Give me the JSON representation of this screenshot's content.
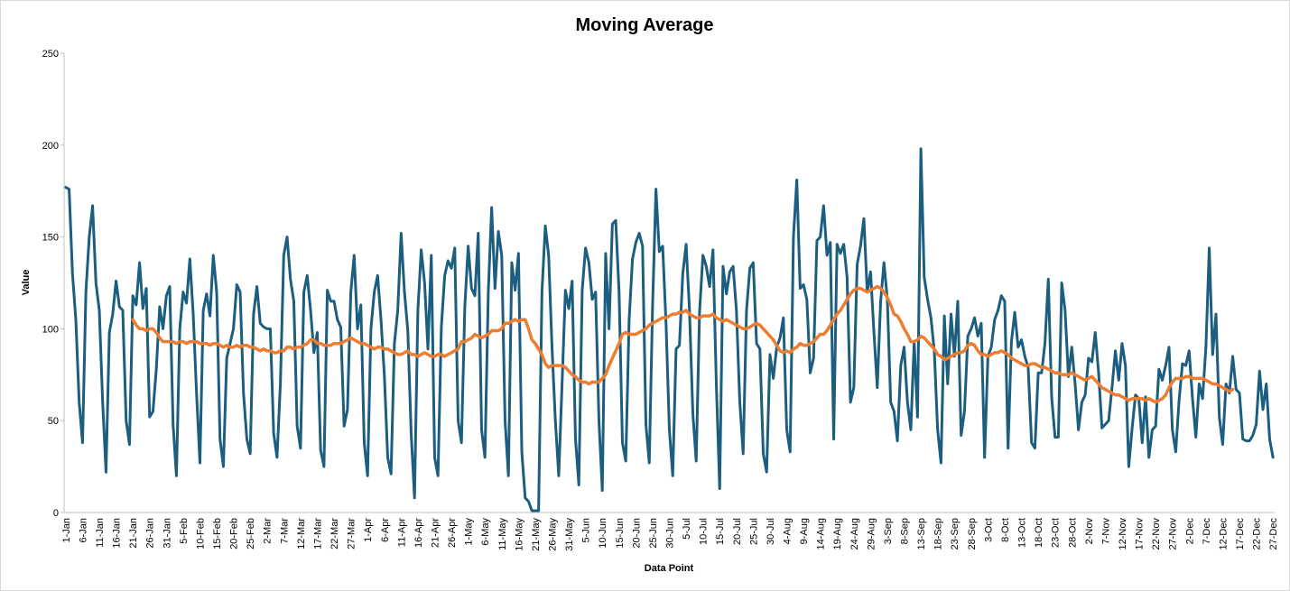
{
  "chart_data": {
    "type": "line",
    "title": "Moving Average",
    "xlabel": "Data Point",
    "ylabel": "Value",
    "ylim": [
      0,
      250
    ],
    "yticks": [
      0,
      50,
      100,
      150,
      200,
      250
    ],
    "grid": false,
    "legend": "none",
    "date_ticks": [
      "1-Jan",
      "6-Jan",
      "11-Jan",
      "16-Jan",
      "21-Jan",
      "26-Jan",
      "31-Jan",
      "5-Feb",
      "10-Feb",
      "15-Feb",
      "20-Feb",
      "25-Feb",
      "2-Mar",
      "7-Mar",
      "12-Mar",
      "17-Mar",
      "22-Mar",
      "27-Mar",
      "1-Apr",
      "6-Apr",
      "11-Apr",
      "16-Apr",
      "21-Apr",
      "26-Apr",
      "1-May",
      "6-May",
      "11-May",
      "16-May",
      "21-May",
      "26-May",
      "31-May",
      "5-Jun",
      "10-Jun",
      "15-Jun",
      "20-Jun",
      "25-Jun",
      "30-Jun",
      "5-Jul",
      "10-Jul",
      "15-Jul",
      "20-Jul",
      "25-Jul",
      "30-Jul",
      "4-Aug",
      "9-Aug",
      "14-Aug",
      "19-Aug",
      "24-Aug",
      "29-Aug",
      "3-Sep",
      "8-Sep",
      "13-Sep",
      "18-Sep",
      "23-Sep",
      "28-Sep",
      "3-Oct",
      "8-Oct",
      "13-Oct",
      "18-Oct",
      "23-Oct",
      "28-Oct",
      "2-Nov",
      "7-Nov",
      "12-Nov",
      "17-Nov",
      "22-Nov",
      "27-Nov",
      "2-Dec",
      "7-Dec",
      "12-Dec",
      "17-Dec",
      "22-Dec",
      "27-Dec"
    ],
    "series": [
      {
        "color": "#1b5e80",
        "values": [
          177,
          176,
          130,
          105,
          60,
          38,
          120,
          150,
          167,
          125,
          110,
          60,
          22,
          98,
          108,
          126,
          112,
          110,
          50,
          37,
          118,
          113,
          136,
          111,
          122,
          52,
          55,
          78,
          112,
          100,
          118,
          123,
          48,
          20,
          100,
          120,
          114,
          138,
          108,
          65,
          27,
          110,
          119,
          107,
          140,
          120,
          40,
          25,
          84,
          92,
          100,
          124,
          120,
          65,
          40,
          32,
          108,
          123,
          103,
          101,
          100,
          100,
          43,
          30,
          70,
          140,
          150,
          127,
          115,
          47,
          35,
          120,
          129,
          110,
          87,
          98,
          34,
          25,
          121,
          115,
          115,
          105,
          101,
          47,
          56,
          120,
          140,
          100,
          113,
          38,
          20,
          100,
          120,
          129,
          105,
          75,
          30,
          21,
          92,
          110,
          152,
          120,
          99,
          43,
          8,
          110,
          143,
          125,
          89,
          140,
          30,
          20,
          101,
          129,
          137,
          133,
          144,
          50,
          38,
          112,
          145,
          122,
          118,
          152,
          45,
          30,
          120,
          166,
          122,
          153,
          140,
          50,
          20,
          136,
          121,
          141,
          33,
          8,
          6,
          1,
          1,
          1,
          120,
          156,
          140,
          90,
          50,
          20,
          70,
          121,
          111,
          126,
          40,
          15,
          121,
          144,
          136,
          116,
          120,
          50,
          12,
          141,
          100,
          157,
          159,
          120,
          38,
          28,
          105,
          138,
          147,
          152,
          145,
          48,
          27,
          113,
          176,
          142,
          145,
          103,
          45,
          20,
          89,
          91,
          130,
          146,
          110,
          54,
          28,
          109,
          140,
          134,
          123,
          143,
          70,
          13,
          134,
          119,
          131,
          134,
          110,
          60,
          32,
          110,
          133,
          136,
          92,
          89,
          32,
          22,
          86,
          73,
          90,
          95,
          106,
          45,
          33,
          150,
          181,
          122,
          124,
          116,
          76,
          84,
          148,
          150,
          167,
          140,
          147,
          40,
          146,
          141,
          146,
          128,
          60,
          68,
          135,
          145,
          160,
          120,
          131,
          98,
          68,
          115,
          136,
          116,
          60,
          55,
          39,
          80,
          90,
          60,
          45,
          93,
          52,
          198,
          128,
          116,
          106,
          88,
          45,
          27,
          107,
          70,
          108,
          85,
          115,
          42,
          55,
          96,
          100,
          106,
          96,
          103,
          30,
          85,
          90,
          105,
          110,
          118,
          115,
          35,
          93,
          109,
          90,
          94,
          85,
          79,
          38,
          35,
          76,
          76,
          92,
          127,
          63,
          41,
          41,
          125,
          110,
          74,
          90,
          70,
          45,
          60,
          64,
          84,
          82,
          98,
          76,
          46,
          48,
          50,
          68,
          88,
          72,
          92,
          80,
          25,
          46,
          64,
          62,
          38,
          63,
          30,
          45,
          47,
          78,
          72,
          80,
          90,
          45,
          33,
          61,
          81,
          80,
          88,
          62,
          41,
          70,
          62,
          90,
          144,
          86,
          108,
          52,
          37,
          70,
          65,
          85,
          67,
          65,
          40,
          39,
          39,
          42,
          48,
          77,
          56,
          70,
          40,
          30
        ]
      },
      {
        "color": "#ed7d31",
        "values": [
          null,
          null,
          null,
          null,
          null,
          null,
          null,
          null,
          null,
          null,
          null,
          null,
          null,
          null,
          null,
          null,
          null,
          null,
          null,
          null,
          105,
          102,
          100,
          100,
          99,
          100,
          100,
          98,
          95,
          93,
          93,
          93,
          93,
          92,
          93,
          93,
          92,
          93,
          93,
          93,
          92,
          92,
          92,
          91,
          92,
          92,
          91,
          90,
          91,
          90,
          90,
          91,
          90,
          91,
          91,
          90,
          90,
          89,
          88,
          89,
          88,
          88,
          87,
          87,
          88,
          88,
          90,
          90,
          89,
          90,
          90,
          91,
          92,
          94,
          94,
          92,
          92,
          91,
          91,
          91,
          92,
          92,
          92,
          93,
          94,
          95,
          94,
          93,
          92,
          92,
          91,
          90,
          89,
          90,
          90,
          89,
          89,
          88,
          87,
          86,
          86,
          87,
          88,
          86,
          86,
          85,
          86,
          87,
          86,
          85,
          85,
          86,
          86,
          85,
          86,
          87,
          88,
          89,
          93,
          93,
          94,
          95,
          97,
          96,
          95,
          96,
          97,
          99,
          99,
          99,
          100,
          103,
          103,
          104,
          105,
          104,
          105,
          105,
          100,
          94,
          92,
          89,
          86,
          81,
          79,
          80,
          80,
          80,
          80,
          79,
          77,
          75,
          74,
          72,
          71,
          71,
          70,
          71,
          71,
          71,
          73,
          75,
          80,
          84,
          88,
          92,
          97,
          98,
          97,
          97,
          97,
          98,
          99,
          100,
          102,
          103,
          104,
          105,
          106,
          106,
          107,
          108,
          108,
          109,
          109,
          110,
          108,
          107,
          106,
          106,
          107,
          107,
          107,
          108,
          106,
          105,
          104,
          105,
          104,
          103,
          102,
          101,
          100,
          100,
          101,
          102,
          103,
          102,
          100,
          98,
          96,
          94,
          91,
          88,
          87,
          88,
          87,
          89,
          90,
          92,
          91,
          91,
          92,
          93,
          95,
          97,
          97,
          99,
          102,
          105,
          108,
          110,
          113,
          116,
          119,
          121,
          122,
          122,
          121,
          120,
          121,
          122,
          123,
          122,
          120,
          117,
          113,
          108,
          107,
          104,
          100,
          97,
          93,
          93,
          94,
          96,
          95,
          93,
          91,
          89,
          86,
          85,
          83,
          84,
          85,
          86,
          87,
          87,
          88,
          91,
          92,
          91,
          88,
          86,
          86,
          85,
          86,
          87,
          87,
          88,
          87,
          86,
          84,
          83,
          82,
          81,
          80,
          80,
          81,
          81,
          80,
          79,
          79,
          78,
          77,
          76,
          76,
          75,
          75,
          75,
          76,
          75,
          74,
          73,
          72,
          73,
          74,
          72,
          70,
          68,
          67,
          66,
          65,
          64,
          64,
          63,
          62,
          61,
          62,
          62,
          62,
          62,
          61,
          62,
          61,
          60,
          61,
          62,
          64,
          68,
          71,
          73,
          73,
          73,
          74,
          74,
          73,
          73,
          73,
          73,
          72,
          71,
          70,
          70,
          69,
          68,
          67,
          66,
          67
        ]
      }
    ]
  }
}
